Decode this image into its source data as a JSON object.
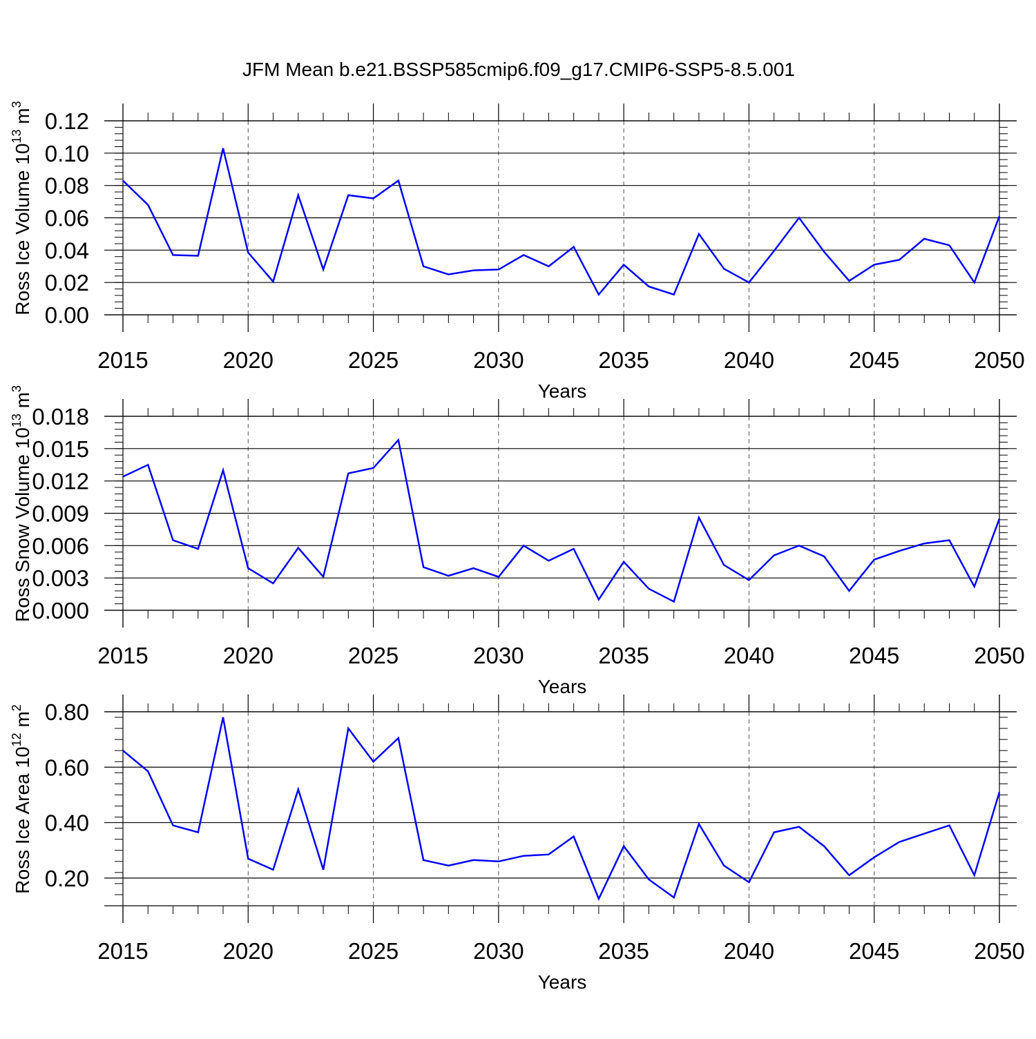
{
  "title": "JFM Mean b.e21.BSSP585cmip6.f09_g17.CMIP6-SSP5-8.5.001",
  "colors": {
    "line": "#0000ff",
    "axis": "#000000",
    "grid": "#555555"
  },
  "chart_data": [
    {
      "type": "line",
      "xlabel": "Years",
      "ylabel_text": "Ross Ice Volume 10",
      "ylabel_exp": "13",
      "ylabel_unit": "m",
      "ylabel_unit_exp": "3",
      "xlim": [
        2015,
        2050
      ],
      "ylim": [
        0.0,
        0.12
      ],
      "xticks": [
        "2015",
        "2020",
        "2025",
        "2030",
        "2035",
        "2040",
        "2045",
        "2050"
      ],
      "yticks": [
        "0.00",
        "0.02",
        "0.04",
        "0.06",
        "0.08",
        "0.10",
        "0.12"
      ],
      "x": [
        2015,
        2016,
        2017,
        2018,
        2019,
        2020,
        2021,
        2022,
        2023,
        2024,
        2025,
        2026,
        2027,
        2028,
        2029,
        2030,
        2031,
        2032,
        2033,
        2034,
        2035,
        2036,
        2037,
        2038,
        2039,
        2040,
        2041,
        2042,
        2043,
        2044,
        2045,
        2046,
        2047,
        2048,
        2049,
        2050
      ],
      "values": [
        0.083,
        0.068,
        0.037,
        0.0365,
        0.103,
        0.0385,
        0.0205,
        0.074,
        0.028,
        0.074,
        0.072,
        0.083,
        0.03,
        0.025,
        0.0275,
        0.028,
        0.037,
        0.03,
        0.042,
        0.0125,
        0.031,
        0.0175,
        0.0125,
        0.05,
        0.0285,
        0.02,
        0.0395,
        0.06,
        0.039,
        0.021,
        0.031,
        0.034,
        0.047,
        0.043,
        0.02,
        0.061
      ]
    },
    {
      "type": "line",
      "xlabel": "Years",
      "ylabel_text": "Ross Snow Volume 10",
      "ylabel_exp": "13",
      "ylabel_unit": "m",
      "ylabel_unit_exp": "3",
      "xlim": [
        2015,
        2050
      ],
      "ylim": [
        0.0,
        0.018
      ],
      "xticks": [
        "2015",
        "2020",
        "2025",
        "2030",
        "2035",
        "2040",
        "2045",
        "2050"
      ],
      "yticks": [
        "0.000",
        "0.003",
        "0.006",
        "0.009",
        "0.012",
        "0.015",
        "0.018"
      ],
      "x": [
        2015,
        2016,
        2017,
        2018,
        2019,
        2020,
        2021,
        2022,
        2023,
        2024,
        2025,
        2026,
        2027,
        2028,
        2029,
        2030,
        2031,
        2032,
        2033,
        2034,
        2035,
        2036,
        2037,
        2038,
        2039,
        2040,
        2041,
        2042,
        2043,
        2044,
        2045,
        2046,
        2047,
        2048,
        2049,
        2050
      ],
      "values": [
        0.0124,
        0.0135,
        0.0065,
        0.0057,
        0.013,
        0.0039,
        0.0025,
        0.0058,
        0.0031,
        0.0127,
        0.0132,
        0.0158,
        0.004,
        0.0032,
        0.0039,
        0.0031,
        0.006,
        0.0046,
        0.0057,
        0.001,
        0.0045,
        0.002,
        0.0008,
        0.0086,
        0.0042,
        0.0028,
        0.0051,
        0.006,
        0.005,
        0.0018,
        0.0047,
        0.0055,
        0.0062,
        0.0065,
        0.0022,
        0.0085
      ]
    },
    {
      "type": "line",
      "xlabel": "Years",
      "ylabel_text": "Ross Ice Area 10",
      "ylabel_exp": "12",
      "ylabel_unit": "m",
      "ylabel_unit_exp": "2",
      "xlim": [
        2015,
        2050
      ],
      "ylim": [
        0.1,
        0.8
      ],
      "xticks": [
        "2015",
        "2020",
        "2025",
        "2030",
        "2035",
        "2040",
        "2045",
        "2050"
      ],
      "yticks": [
        "0.20",
        "0.40",
        "0.60",
        "0.80"
      ],
      "x": [
        2015,
        2016,
        2017,
        2018,
        2019,
        2020,
        2021,
        2022,
        2023,
        2024,
        2025,
        2026,
        2027,
        2028,
        2029,
        2030,
        2031,
        2032,
        2033,
        2034,
        2035,
        2036,
        2037,
        2038,
        2039,
        2040,
        2041,
        2042,
        2043,
        2044,
        2045,
        2046,
        2047,
        2048,
        2049,
        2050
      ],
      "values": [
        0.66,
        0.585,
        0.39,
        0.365,
        0.78,
        0.27,
        0.23,
        0.52,
        0.23,
        0.74,
        0.62,
        0.705,
        0.265,
        0.245,
        0.265,
        0.26,
        0.28,
        0.285,
        0.35,
        0.125,
        0.315,
        0.195,
        0.13,
        0.395,
        0.245,
        0.185,
        0.365,
        0.385,
        0.315,
        0.21,
        0.275,
        0.33,
        0.36,
        0.39,
        0.21,
        0.51
      ]
    }
  ]
}
